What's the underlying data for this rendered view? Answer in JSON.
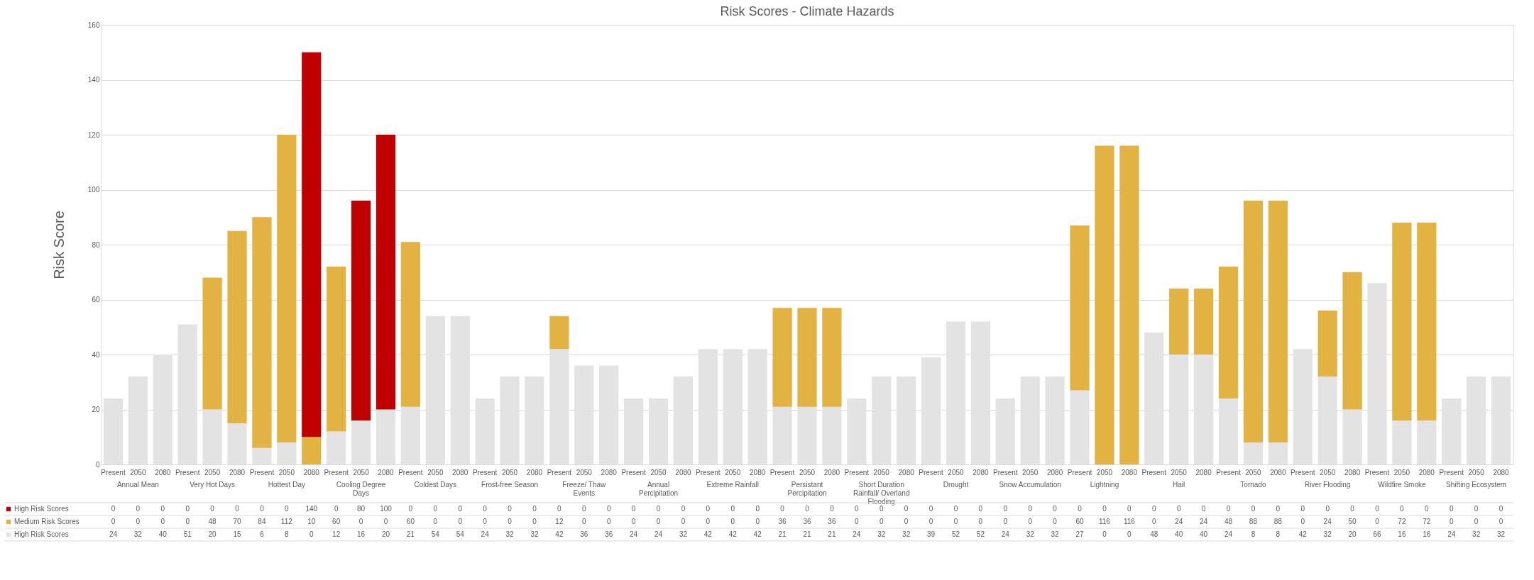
{
  "chart_data": {
    "type": "bar",
    "title": "Risk Scores - Climate Hazards",
    "ylabel": "Risk Score",
    "categories": [
      "Present",
      "2050",
      "2080",
      "Present",
      "2050",
      "2080",
      "Present",
      "2050",
      "2080",
      "Present",
      "2050",
      "2080",
      "Present",
      "2050",
      "2080",
      "Present",
      "2050",
      "2080",
      "Present",
      "2050",
      "2080",
      "Present",
      "2050",
      "2080",
      "Present",
      "2050",
      "2080",
      "Present",
      "2050",
      "2080",
      "Present",
      "2050",
      "2080",
      "Present",
      "2050",
      "2080",
      "Present",
      "2050",
      "2080",
      "Present",
      "2050",
      "2080",
      "Present",
      "2050",
      "2080",
      "Present",
      "2050",
      "2080",
      "Present",
      "2050",
      "2080",
      "Present",
      "2050",
      "2080",
      "Present",
      "2050",
      "2080"
    ],
    "annotations": [
      "Annual Mean",
      "Very Hot Days",
      "Hottest Day",
      "Cooling Degree Days",
      "Coldest Days",
      "Frost-free Season",
      "Freeze/ Thaw Events",
      "Annual Percipitation",
      "Extreme Rainfall",
      "Persistant Percipitation",
      "Short Duration Rainfall/ Overland Flooding",
      "Drought",
      "Snow Accumulation",
      "Lightning",
      "Hail",
      "Tornado",
      "River Flooding",
      "Wildfire  Smoke",
      "Shifting Ecosystem"
    ],
    "stacked": true,
    "ylim": [
      0,
      160
    ],
    "yticks": [
      0,
      20,
      40,
      60,
      80,
      100,
      120,
      140,
      160
    ],
    "grid": "y",
    "data_labels": true,
    "legend": "bottom left",
    "series": [
      {
        "name": "High Risk Scores",
        "color": "#e3e3e3",
        "values": [
          24,
          32,
          40,
          51,
          20,
          15,
          6,
          8,
          0,
          12,
          16,
          20,
          21,
          54,
          54,
          24,
          32,
          32,
          42,
          36,
          36,
          24,
          24,
          32,
          42,
          42,
          42,
          21,
          21,
          21,
          24,
          32,
          32,
          39,
          52,
          52,
          24,
          32,
          32,
          27,
          0,
          0,
          48,
          40,
          40,
          24,
          8,
          8,
          42,
          32,
          20,
          66,
          16,
          16,
          24,
          32,
          32
        ]
      },
      {
        "name": "Medium Risk Scores",
        "color": "#e2b243",
        "values": [
          0,
          0,
          0,
          0,
          48,
          70,
          84,
          112,
          10,
          60,
          0,
          0,
          60,
          0,
          0,
          0,
          0,
          0,
          12,
          0,
          0,
          0,
          0,
          0,
          0,
          0,
          0,
          36,
          36,
          36,
          0,
          0,
          0,
          0,
          0,
          0,
          0,
          0,
          0,
          60,
          116,
          116,
          0,
          24,
          24,
          48,
          88,
          88,
          0,
          24,
          50,
          0,
          72,
          72,
          0,
          0,
          0
        ]
      },
      {
        "name": "High Risk Scores",
        "color": "#c00000",
        "values": [
          0,
          0,
          0,
          0,
          0,
          0,
          0,
          0,
          140,
          0,
          80,
          100,
          0,
          0,
          0,
          0,
          0,
          0,
          0,
          0,
          0,
          0,
          0,
          0,
          0,
          0,
          0,
          0,
          0,
          0,
          0,
          0,
          0,
          0,
          0,
          0,
          0,
          0,
          0,
          0,
          0,
          0,
          0,
          0,
          0,
          0,
          0,
          0,
          0,
          0,
          0,
          0,
          0,
          0,
          0,
          0,
          0
        ]
      }
    ]
  }
}
